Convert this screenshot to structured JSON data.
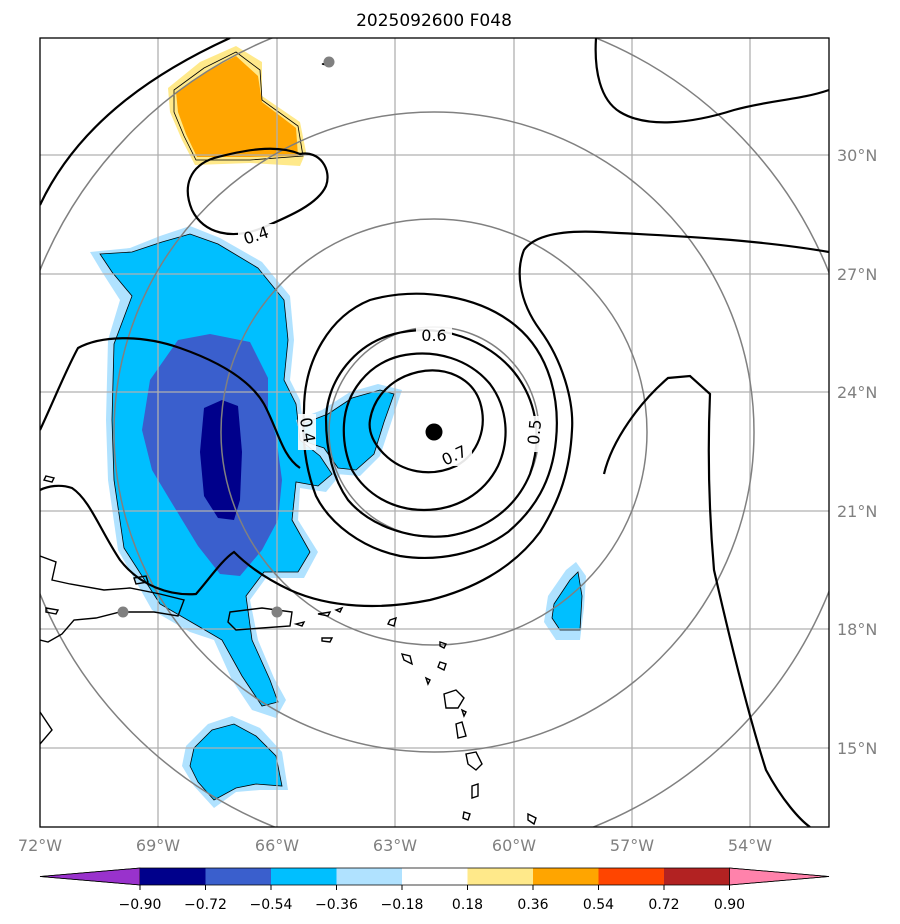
{
  "title": "2025092600 F048",
  "x_ticks": [
    "72°W",
    "69°W",
    "66°W",
    "63°W",
    "60°W",
    "57°W",
    "54°W"
  ],
  "y_ticks": [
    "30°N",
    "27°N",
    "24°N",
    "21°N",
    "18°N",
    "15°N"
  ],
  "contour_labels": [
    "0.4",
    "0.4",
    "0.6",
    "0.5",
    "0.7"
  ],
  "colorbar": {
    "ticks": [
      "−0.90",
      "−0.72",
      "−0.54",
      "−0.36",
      "−0.18",
      "0.18",
      "0.36",
      "0.54",
      "0.72",
      "0.90"
    ],
    "colors": [
      "#9932cc",
      "#00008b",
      "#3a5fcd",
      "#00bfff",
      "#b0e2ff",
      "#ffffff",
      "#ffe98a",
      "#ffa500",
      "#ff4500",
      "#b22222",
      "#ff82ab"
    ]
  },
  "map": {
    "lon_range": [
      -72,
      -52
    ],
    "lat_range": [
      13,
      33
    ],
    "storm_center": {
      "lon": -62,
      "lat": 23
    },
    "station_markers": [
      {
        "lon": -64.6,
        "lat": 32.4
      },
      {
        "lon": -70,
        "lat": 18.4
      },
      {
        "lon": -66,
        "lat": 18.4
      }
    ],
    "colors": {
      "positive_anomaly": "#ffa500",
      "weak_positive": "#ffe98a",
      "weak_negative": "#b0e2ff",
      "moderate_negative": "#00bfff",
      "strong_negative": "#3a5fcd",
      "extreme_negative": "#00008b"
    }
  }
}
